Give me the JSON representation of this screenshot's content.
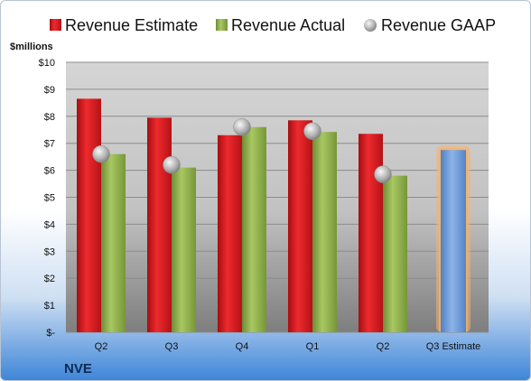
{
  "chart_data": {
    "type": "bar",
    "company": "NVE",
    "ylabel": "$millions",
    "ylim": [
      0,
      10
    ],
    "yticks": [
      {
        "value": 0,
        "label": "$-"
      },
      {
        "value": 1,
        "label": "$1"
      },
      {
        "value": 2,
        "label": "$2"
      },
      {
        "value": 3,
        "label": "$3"
      },
      {
        "value": 4,
        "label": "$4"
      },
      {
        "value": 5,
        "label": "$5"
      },
      {
        "value": 6,
        "label": "$6"
      },
      {
        "value": 7,
        "label": "$7"
      },
      {
        "value": 8,
        "label": "$8"
      },
      {
        "value": 9,
        "label": "$9"
      },
      {
        "value": 10,
        "label": "$10"
      }
    ],
    "categories": [
      "Q2",
      "Q3",
      "Q4",
      "Q1",
      "Q2",
      "Q3 Estimate"
    ],
    "legend_position": "top",
    "grid": true,
    "series": [
      {
        "name": "Revenue Estimate",
        "kind": "bar",
        "color": "#d9161c",
        "values": [
          8.65,
          7.95,
          7.3,
          7.85,
          7.35,
          null
        ]
      },
      {
        "name": "Revenue Actual",
        "kind": "bar",
        "color": "#8fb04a",
        "values": [
          6.6,
          6.1,
          7.6,
          7.42,
          5.8,
          null
        ]
      },
      {
        "name": "Revenue GAAP",
        "kind": "marker",
        "color": "#c8c8c8",
        "values": [
          6.6,
          6.2,
          7.6,
          7.45,
          5.85,
          null
        ]
      }
    ],
    "estimate": {
      "category_index": 5,
      "value": 6.75,
      "color": "#6a9ad8",
      "glow": "#f5b26b"
    }
  }
}
